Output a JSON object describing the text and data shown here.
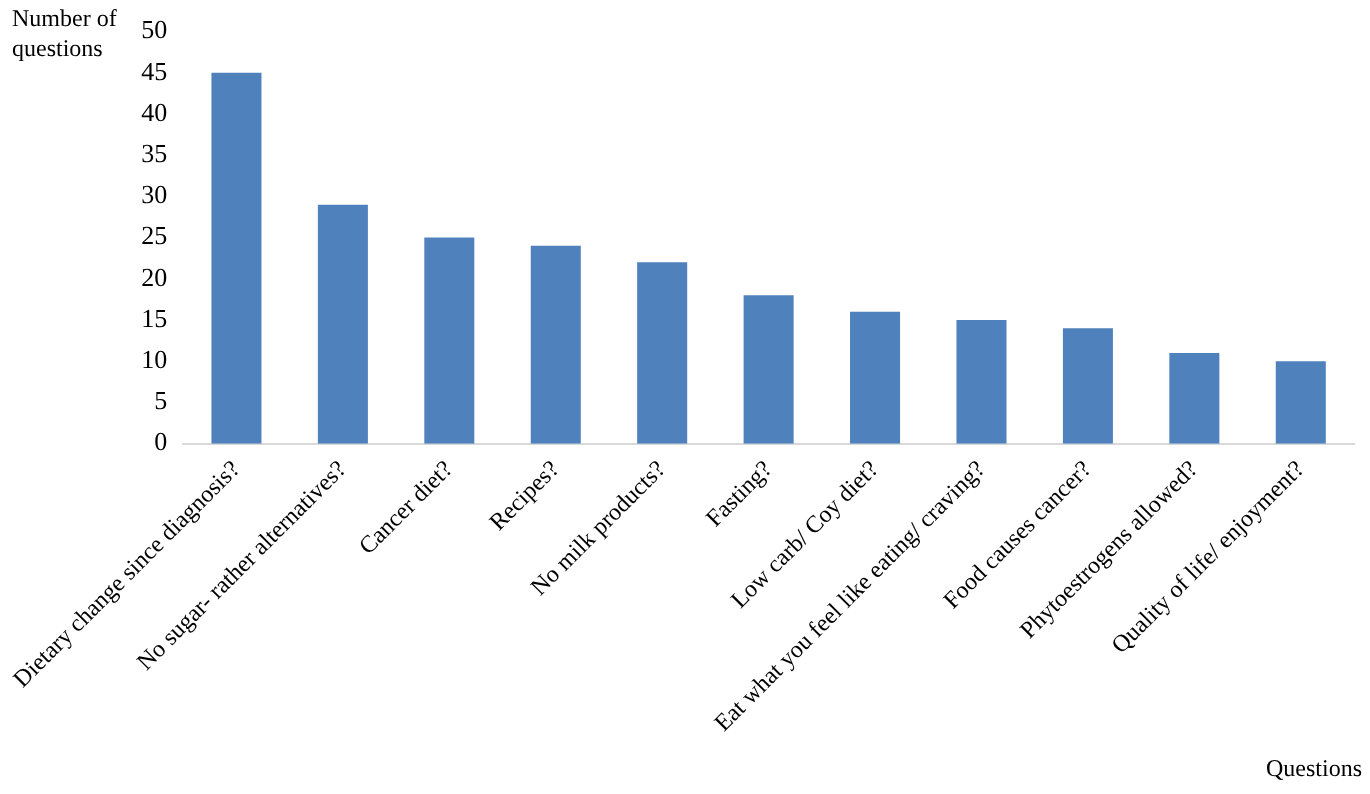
{
  "chart_data": {
    "type": "bar",
    "ylabel": "Number of questions",
    "xlabel": "Questions",
    "categories": [
      "Dietary change since diagnosis?",
      "No sugar- rather alternatives?",
      "Cancer diet?",
      "Recipes?",
      "No milk products?",
      "Fasting?",
      "Low carb/ Coy diet?",
      "Eat what you feel like eating/ craving?",
      "Food causes cancer?",
      "Phytoestrogens allowed?",
      "Quality of life/ enjoyment?"
    ],
    "values": [
      45,
      29,
      25,
      24,
      22,
      18,
      16,
      15,
      14,
      11,
      10
    ],
    "color": "#4f81bd",
    "ylim": [
      0,
      50
    ],
    "yticks": [
      0,
      5,
      10,
      15,
      20,
      25,
      30,
      35,
      40,
      45,
      50
    ],
    "grid": false,
    "legend": false
  }
}
